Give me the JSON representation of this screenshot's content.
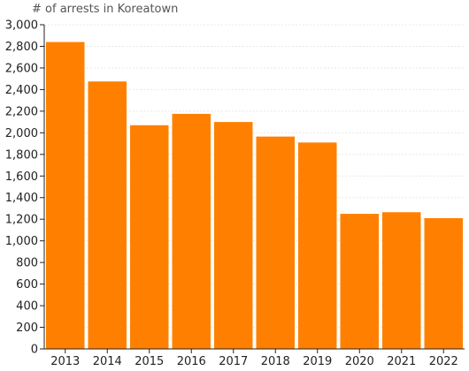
{
  "chart_data": {
    "type": "bar",
    "title": "# of arrests in Koreatown",
    "categories": [
      "2013",
      "2014",
      "2015",
      "2016",
      "2017",
      "2018",
      "2019",
      "2020",
      "2021",
      "2022"
    ],
    "values": [
      2840,
      2475,
      2070,
      2175,
      2100,
      1965,
      1910,
      1250,
      1265,
      1210
    ],
    "ylim": [
      0,
      3000
    ],
    "yticks": [
      0,
      200,
      400,
      600,
      800,
      1000,
      1200,
      1400,
      1600,
      1800,
      2000,
      2200,
      2400,
      2600,
      2800,
      3000
    ],
    "ytick_labels": [
      "0",
      "200",
      "400",
      "600",
      "800",
      "1,000",
      "1,200",
      "1,400",
      "1,600",
      "1,800",
      "2,000",
      "2,200",
      "2,400",
      "2,600",
      "2,800",
      "3,000"
    ],
    "xlabel": "",
    "ylabel": "",
    "grid": true,
    "bar_color": "#ff8000",
    "grid_color": "#e8e8e8",
    "axis_color": "#222222"
  }
}
